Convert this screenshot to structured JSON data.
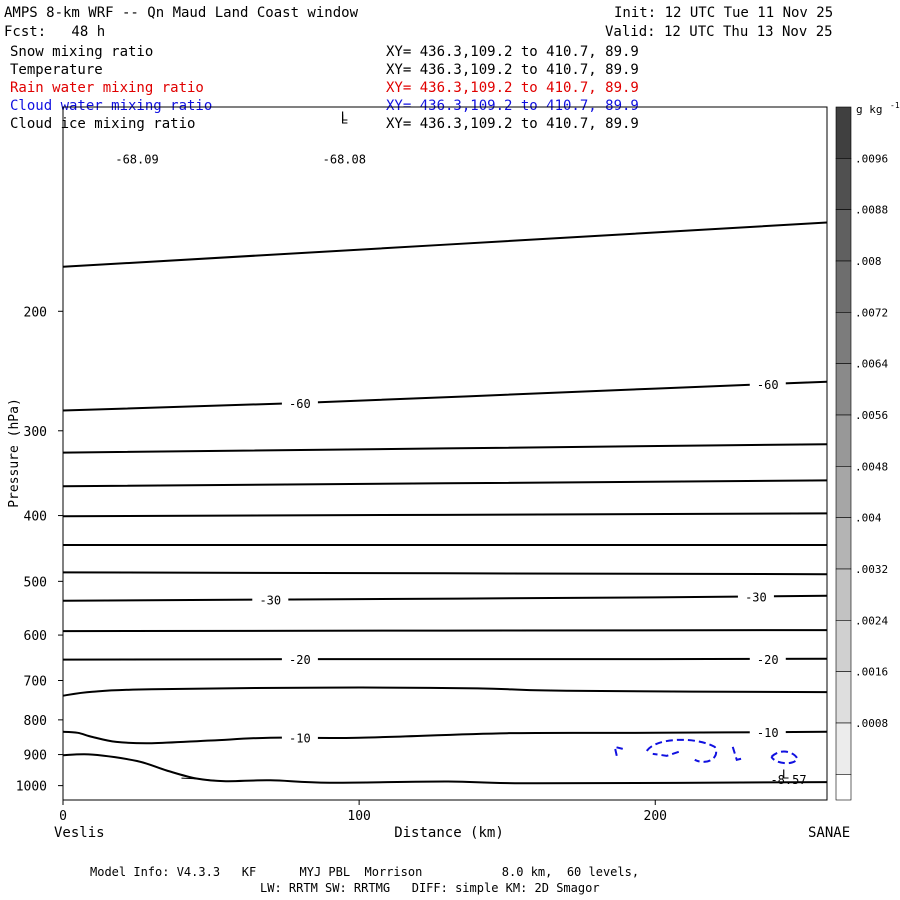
{
  "header": {
    "title": "AMPS 8-km WRF -- Qn Maud Land Coast window",
    "fcst": "Fcst:   48 h",
    "init": "Init: 12 UTC Tue 11 Nov 25",
    "valid": "Valid: 12 UTC Thu 13 Nov 25"
  },
  "legend": [
    {
      "label": "Snow mixing ratio",
      "xy": "XY= 436.3,109.2 to 410.7, 89.9",
      "color": "#000000"
    },
    {
      "label": "Temperature",
      "xy": "XY= 436.3,109.2 to 410.7, 89.9",
      "color": "#000000"
    },
    {
      "label": "Rain water mixing ratio",
      "xy": "XY= 436.3,109.2 to 410.7, 89.9",
      "color": "#e00000"
    },
    {
      "label": "Cloud water mixing ratio",
      "xy": "XY= 436.3,109.2 to 410.7, 89.9",
      "color": "#1010e0"
    },
    {
      "label": "Cloud ice mixing ratio",
      "xy": "XY= 436.3,109.2 to 410.7, 89.9",
      "color": "#000000"
    }
  ],
  "colorbar": {
    "unit_base": "g kg",
    "unit_exp": "-1",
    "ticks": [
      ".0096",
      ".0088",
      ".008",
      ".0072",
      ".0064",
      ".0056",
      ".0048",
      ".004",
      ".0032",
      ".0024",
      ".0016",
      ".0008"
    ],
    "shades": [
      "#404040",
      "#505050",
      "#606060",
      "#6e6e6e",
      "#7c7c7c",
      "#8a8a8a",
      "#989898",
      "#a6a6a6",
      "#b4b4b4",
      "#c2c2c2",
      "#d0d0d0",
      "#dedede",
      "#ececec",
      "#ffffff"
    ]
  },
  "chart_data": {
    "type": "line",
    "title": "AMPS 8-km WRF -- Qn Maud Land Coast window",
    "xlabel": "Distance (km)",
    "ylabel": "Pressure (hPa)",
    "xlim": [
      0,
      258
    ],
    "ylim": [
      1050,
      100
    ],
    "yscale": "log",
    "x_ticks": [
      0,
      100,
      200
    ],
    "y_ticks": [
      200,
      300,
      400,
      500,
      600,
      700,
      800,
      900,
      1000
    ],
    "endpoint_left": "Veslis",
    "endpoint_right": "SANAE",
    "isotherms": [
      {
        "points": [
          [
            0,
            172
          ],
          [
            258,
            148
          ]
        ]
      },
      {
        "points": [
          [
            0,
            280
          ],
          [
            80,
            273
          ],
          [
            200,
            260
          ],
          [
            258,
            254
          ]
        ],
        "labels": [
          {
            "text": "-60",
            "x": 80
          },
          {
            "text": "-60",
            "x": 238
          }
        ]
      },
      {
        "points": [
          [
            0,
            323
          ],
          [
            258,
            314
          ]
        ]
      },
      {
        "points": [
          [
            0,
            362
          ],
          [
            258,
            355
          ]
        ]
      },
      {
        "points": [
          [
            0,
            401
          ],
          [
            258,
            397
          ]
        ]
      },
      {
        "points": [
          [
            0,
            442
          ],
          [
            258,
            442
          ]
        ]
      },
      {
        "points": [
          [
            0,
            485
          ],
          [
            258,
            488
          ]
        ]
      },
      {
        "points": [
          [
            0,
            534
          ],
          [
            70,
            532
          ],
          [
            200,
            528
          ],
          [
            258,
            525
          ]
        ],
        "labels": [
          {
            "text": "-30",
            "x": 70
          },
          {
            "text": "-30",
            "x": 234
          }
        ]
      },
      {
        "points": [
          [
            0,
            592
          ],
          [
            258,
            590
          ]
        ]
      },
      {
        "points": [
          [
            0,
            652
          ],
          [
            80,
            651
          ],
          [
            200,
            651
          ],
          [
            258,
            650
          ]
        ],
        "labels": [
          {
            "text": "-20",
            "x": 80
          },
          {
            "text": "-20",
            "x": 238
          }
        ]
      },
      {
        "points": [
          [
            0,
            737
          ],
          [
            10,
            727
          ],
          [
            30,
            721
          ],
          [
            90,
            717
          ],
          [
            140,
            719
          ],
          [
            170,
            725
          ],
          [
            258,
            728
          ]
        ]
      },
      {
        "points": [
          [
            0,
            833
          ],
          [
            5,
            836
          ],
          [
            10,
            848
          ],
          [
            18,
            862
          ],
          [
            30,
            866
          ],
          [
            50,
            858
          ],
          [
            70,
            850
          ],
          [
            100,
            850
          ],
          [
            150,
            837
          ],
          [
            200,
            836
          ],
          [
            258,
            833
          ]
        ],
        "labels": [
          {
            "text": "-10",
            "x": 80
          },
          {
            "text": "-10",
            "x": 238
          }
        ]
      },
      {
        "points": [
          [
            0,
            902
          ],
          [
            10,
            900
          ],
          [
            25,
            920
          ],
          [
            35,
            950
          ],
          [
            45,
            976
          ],
          [
            55,
            985
          ],
          [
            70,
            982
          ],
          [
            90,
            990
          ],
          [
            130,
            986
          ],
          [
            160,
            992
          ],
          [
            258,
            988
          ]
        ]
      }
    ],
    "annotations": [
      {
        "text": "L",
        "x": 95,
        "p": 103
      },
      {
        "text": "-68.09",
        "x": 25,
        "p": 119
      },
      {
        "text": "L",
        "x": 95,
        "p": 104
      },
      {
        "text": "-68.08",
        "x": 95,
        "p": 119
      },
      {
        "text": "L",
        "x": 244,
        "p": 960
      },
      {
        "text": "-8.57",
        "x": 245,
        "p": 977
      }
    ],
    "cloud_water_contour": {
      "color": "#1010e0",
      "x_range": [
        187,
        248
      ],
      "p_range": [
        865,
        910
      ]
    }
  },
  "model_info": {
    "line1": "Model Info: V4.3.3   KF      MYJ PBL  Morrison           8.0 km,  60 levels,",
    "line2": "LW: RRTM SW: RRTMG   DIFF: simple KM: 2D Smagor"
  }
}
